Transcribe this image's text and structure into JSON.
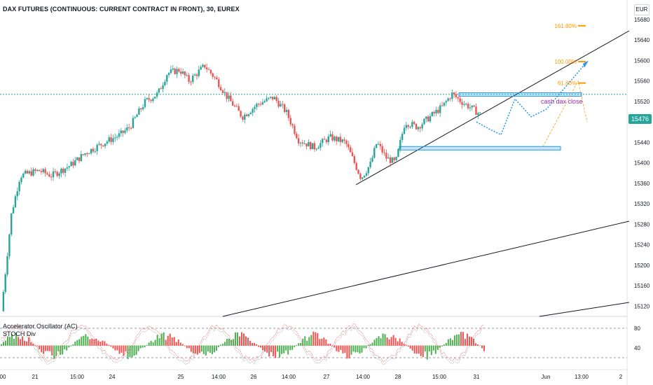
{
  "header": {
    "title": "DAX FUTURES (CONTINUOUS: CURRENT CONTRACT IN FRONT), 30, EUREX",
    "currency": "EUR"
  },
  "last_price": "15476",
  "indicators": [
    "Accelerator Oscillator (AC)",
    "STOCH Div"
  ],
  "colors": {
    "up": "#26a69a",
    "down": "#ef5350",
    "fib": "#ff9800",
    "level": "#2196f3",
    "annotation": "#9c27b0",
    "osc_up": "#4caf50"
  },
  "chart_data": {
    "type": "candlestick",
    "title": "DAX FUTURES (CONTINUOUS: CURRENT CONTRACT IN FRONT), 30, EUREX",
    "y_ticks": [
      15120,
      15160,
      15200,
      15240,
      15280,
      15320,
      15360,
      15400,
      15440,
      15480,
      15520,
      15560,
      15600,
      15640,
      15680
    ],
    "ylim": [
      15100,
      15700
    ],
    "x_ticks": [
      "00",
      "21",
      "15:00",
      "24",
      "25",
      "14:00",
      "26",
      "14:00",
      "27",
      "14:00",
      "28",
      "15:00",
      "31",
      "Jun",
      "13:00",
      "2"
    ],
    "close_path": [
      [
        0,
        15110
      ],
      [
        0.016,
        15300
      ],
      [
        0.03,
        15375
      ],
      [
        0.06,
        15385
      ],
      [
        0.08,
        15375
      ],
      [
        0.11,
        15395
      ],
      [
        0.135,
        15420
      ],
      [
        0.165,
        15440
      ],
      [
        0.19,
        15455
      ],
      [
        0.205,
        15470
      ],
      [
        0.23,
        15520
      ],
      [
        0.25,
        15535
      ],
      [
        0.265,
        15575
      ],
      [
        0.285,
        15582
      ],
      [
        0.3,
        15560
      ],
      [
        0.325,
        15590
      ],
      [
        0.345,
        15560
      ],
      [
        0.36,
        15530
      ],
      [
        0.385,
        15490
      ],
      [
        0.41,
        15515
      ],
      [
        0.435,
        15528
      ],
      [
        0.455,
        15500
      ],
      [
        0.475,
        15445
      ],
      [
        0.5,
        15430
      ],
      [
        0.525,
        15450
      ],
      [
        0.55,
        15440
      ],
      [
        0.575,
        15370
      ],
      [
        0.59,
        15398
      ],
      [
        0.6,
        15440
      ],
      [
        0.615,
        15410
      ],
      [
        0.63,
        15400
      ],
      [
        0.645,
        15480
      ],
      [
        0.665,
        15470
      ],
      [
        0.685,
        15490
      ],
      [
        0.705,
        15510
      ],
      [
        0.72,
        15535
      ],
      [
        0.735,
        15520
      ],
      [
        0.75,
        15508
      ],
      [
        0.765,
        15495
      ]
    ],
    "series": [
      {
        "name": "Accelerator Oscillator (AC)",
        "type": "histogram"
      },
      {
        "name": "STOCH Div",
        "type": "line"
      }
    ],
    "oscillator_ticks": [
      40,
      80
    ],
    "oscillator_lim": [
      0,
      100
    ],
    "horizontal_line": 15534,
    "fib_levels": [
      {
        "label": "161.80%",
        "value": 15668
      },
      {
        "label": "100.00%",
        "value": 15598
      },
      {
        "label": "61.80%",
        "value": 15556
      }
    ],
    "annotations": [
      "cash dax close"
    ]
  }
}
